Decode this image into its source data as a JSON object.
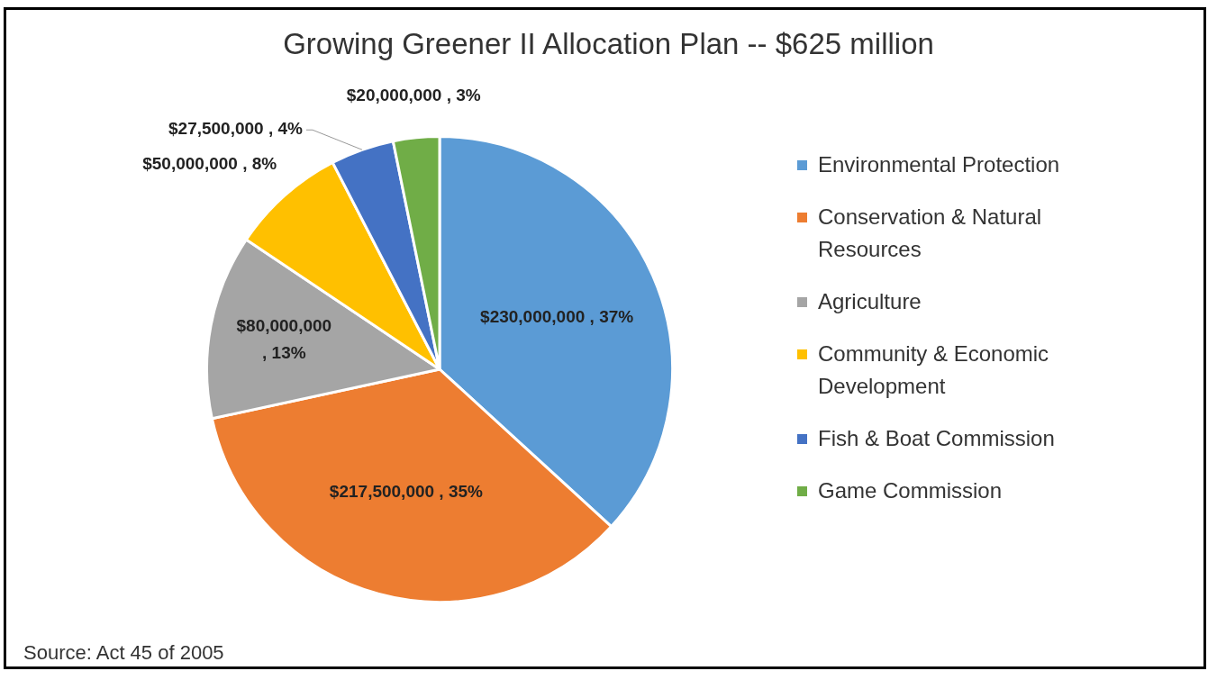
{
  "chart_data": {
    "type": "pie",
    "title": "Growing Greener II Allocation Plan -- $625 million",
    "categories": [
      "Environmental Protection",
      "Conservation & Natural Resources",
      "Agriculture",
      "Community & Economic Development",
      "Fish & Boat Commission",
      "Game Commission"
    ],
    "values": [
      230000000,
      217500000,
      80000000,
      50000000,
      27500000,
      20000000
    ],
    "colors": [
      "#5b9bd5",
      "#ed7d31",
      "#a5a5a5",
      "#ffc000",
      "#4472c4",
      "#70ad47"
    ],
    "value_labels": [
      "$230,000,000 , 37%",
      "$217,500,000 , 35%",
      "$80,000,000 , 13%",
      "$50,000,000 , 8%",
      "$27,500,000 , 4%",
      "$20,000,000 , 3%"
    ],
    "legend": "right",
    "annotations": [
      "Source: Act 45 of 2005"
    ]
  }
}
